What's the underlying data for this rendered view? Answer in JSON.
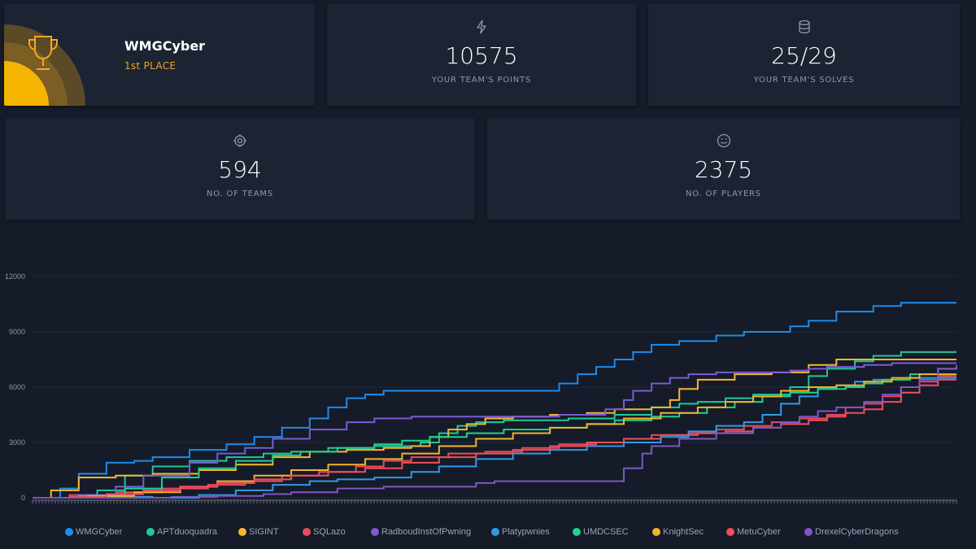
{
  "team_card": {
    "name": "WMGCyber",
    "place": "1st PLACE",
    "icon": "trophy-icon",
    "accent": "#f5a623"
  },
  "stats": {
    "points": {
      "value": "10575",
      "label": "YOUR TEAM'S POINTS",
      "icon": "lightning-icon"
    },
    "solves": {
      "value": "25/29",
      "label": "YOUR TEAM'S SOLVES",
      "icon": "database-icon"
    },
    "teams": {
      "value": "594",
      "label": "NO. OF TEAMS",
      "icon": "target-icon"
    },
    "players": {
      "value": "2375",
      "label": "NO. OF PLAYERS",
      "icon": "smiley-icon"
    }
  },
  "chart_data": {
    "type": "line",
    "title": "",
    "xlabel": "",
    "ylabel": "",
    "x_range": [
      0,
      100
    ],
    "ylim": [
      0,
      12000
    ],
    "y_ticks": [
      0,
      3000,
      6000,
      9000,
      12000
    ],
    "legend_position": "bottom",
    "series": [
      {
        "name": "WMGCyber",
        "color": "#1f8ceb",
        "points": [
          [
            0,
            0
          ],
          [
            3,
            500
          ],
          [
            5,
            1300
          ],
          [
            8,
            1900
          ],
          [
            11,
            2000
          ],
          [
            13,
            2200
          ],
          [
            17,
            2600
          ],
          [
            21,
            2900
          ],
          [
            24,
            3300
          ],
          [
            27,
            3800
          ],
          [
            30,
            4300
          ],
          [
            32,
            4900
          ],
          [
            34,
            5400
          ],
          [
            36,
            5600
          ],
          [
            38,
            5800
          ],
          [
            50,
            5800
          ],
          [
            54,
            5800
          ],
          [
            57,
            6200
          ],
          [
            59,
            6700
          ],
          [
            61,
            7100
          ],
          [
            63,
            7500
          ],
          [
            65,
            7900
          ],
          [
            67,
            8300
          ],
          [
            70,
            8500
          ],
          [
            74,
            8800
          ],
          [
            77,
            9000
          ],
          [
            82,
            9300
          ],
          [
            84,
            9600
          ],
          [
            87,
            10100
          ],
          [
            91,
            10400
          ],
          [
            94,
            10575
          ],
          [
            100,
            10575
          ]
        ]
      },
      {
        "name": "APTduoquadra",
        "color": "#1fc89a",
        "points": [
          [
            0,
            0
          ],
          [
            7,
            400
          ],
          [
            10,
            1200
          ],
          [
            13,
            1700
          ],
          [
            17,
            2000
          ],
          [
            21,
            2200
          ],
          [
            25,
            2400
          ],
          [
            28,
            2500
          ],
          [
            32,
            2700
          ],
          [
            37,
            2800
          ],
          [
            42,
            3000
          ],
          [
            44,
            3500
          ],
          [
            46,
            3900
          ],
          [
            48,
            4100
          ],
          [
            51,
            4200
          ],
          [
            58,
            4300
          ],
          [
            63,
            4500
          ],
          [
            67,
            4900
          ],
          [
            70,
            5100
          ],
          [
            72,
            5200
          ],
          [
            75,
            5400
          ],
          [
            78,
            5600
          ],
          [
            82,
            6000
          ],
          [
            84,
            6600
          ],
          [
            86,
            7000
          ],
          [
            89,
            7400
          ],
          [
            91,
            7700
          ],
          [
            94,
            7900
          ],
          [
            100,
            7900
          ]
        ]
      },
      {
        "name": "SIGINT",
        "color": "#f5b731",
        "points": [
          [
            0,
            0
          ],
          [
            2,
            400
          ],
          [
            5,
            1100
          ],
          [
            9,
            1200
          ],
          [
            13,
            1300
          ],
          [
            18,
            1500
          ],
          [
            22,
            1800
          ],
          [
            26,
            2200
          ],
          [
            30,
            2500
          ],
          [
            34,
            2600
          ],
          [
            38,
            2700
          ],
          [
            41,
            2800
          ],
          [
            43,
            3300
          ],
          [
            45,
            3700
          ],
          [
            47,
            4000
          ],
          [
            49,
            4300
          ],
          [
            52,
            4400
          ],
          [
            56,
            4500
          ],
          [
            60,
            4600
          ],
          [
            63,
            4800
          ],
          [
            67,
            4900
          ],
          [
            69,
            5300
          ],
          [
            70,
            5900
          ],
          [
            72,
            6400
          ],
          [
            76,
            6700
          ],
          [
            80,
            6800
          ],
          [
            84,
            7200
          ],
          [
            87,
            7500
          ],
          [
            91,
            7500
          ],
          [
            100,
            7500
          ]
        ]
      },
      {
        "name": "SQLazo",
        "color": "#e84a5f",
        "points": [
          [
            0,
            0
          ],
          [
            4,
            150
          ],
          [
            9,
            300
          ],
          [
            14,
            500
          ],
          [
            19,
            700
          ],
          [
            23,
            900
          ],
          [
            27,
            1200
          ],
          [
            31,
            1400
          ],
          [
            35,
            1700
          ],
          [
            38,
            2000
          ],
          [
            41,
            2200
          ],
          [
            45,
            2400
          ],
          [
            49,
            2500
          ],
          [
            53,
            2700
          ],
          [
            57,
            2900
          ],
          [
            61,
            3000
          ],
          [
            64,
            3200
          ],
          [
            67,
            3400
          ],
          [
            71,
            3500
          ],
          [
            74,
            3700
          ],
          [
            77,
            3900
          ],
          [
            80,
            4100
          ],
          [
            83,
            4300
          ],
          [
            86,
            4500
          ],
          [
            88,
            4900
          ],
          [
            90,
            5100
          ],
          [
            92,
            5500
          ],
          [
            94,
            6000
          ],
          [
            96,
            6300
          ],
          [
            98,
            6600
          ],
          [
            100,
            6600
          ]
        ]
      },
      {
        "name": "RadboudInstOfPwning",
        "color": "#7b5bd6",
        "points": [
          [
            0,
            0
          ],
          [
            5,
            150
          ],
          [
            9,
            600
          ],
          [
            12,
            1200
          ],
          [
            17,
            1900
          ],
          [
            20,
            2400
          ],
          [
            23,
            2700
          ],
          [
            26,
            3200
          ],
          [
            30,
            3700
          ],
          [
            34,
            4100
          ],
          [
            37,
            4300
          ],
          [
            41,
            4400
          ],
          [
            53,
            4400
          ],
          [
            57,
            4500
          ],
          [
            60,
            4500
          ],
          [
            62,
            4800
          ],
          [
            64,
            5300
          ],
          [
            65,
            5800
          ],
          [
            67,
            6200
          ],
          [
            69,
            6500
          ],
          [
            71,
            6700
          ],
          [
            74,
            6800
          ],
          [
            78,
            6800
          ],
          [
            82,
            6900
          ],
          [
            84,
            7000
          ],
          [
            86,
            7100
          ],
          [
            90,
            7200
          ],
          [
            93,
            7300
          ],
          [
            100,
            7300
          ]
        ]
      },
      {
        "name": "Platypwnies",
        "color": "#2f9be8",
        "points": [
          [
            0,
            0
          ],
          [
            8,
            50
          ],
          [
            13,
            0
          ],
          [
            18,
            150
          ],
          [
            22,
            400
          ],
          [
            26,
            700
          ],
          [
            30,
            900
          ],
          [
            33,
            1000
          ],
          [
            37,
            1100
          ],
          [
            41,
            1400
          ],
          [
            44,
            1700
          ],
          [
            48,
            2100
          ],
          [
            52,
            2400
          ],
          [
            56,
            2600
          ],
          [
            60,
            2800
          ],
          [
            64,
            3000
          ],
          [
            68,
            3300
          ],
          [
            71,
            3600
          ],
          [
            74,
            3900
          ],
          [
            77,
            4100
          ],
          [
            79,
            4500
          ],
          [
            81,
            5100
          ],
          [
            83,
            5500
          ],
          [
            85,
            5900
          ],
          [
            87,
            6100
          ],
          [
            89,
            6300
          ],
          [
            91,
            6400
          ],
          [
            94,
            6500
          ],
          [
            100,
            6500
          ]
        ]
      },
      {
        "name": "UMDCSEC",
        "color": "#23d18b",
        "points": [
          [
            0,
            0
          ],
          [
            5,
            100
          ],
          [
            10,
            500
          ],
          [
            14,
            1100
          ],
          [
            18,
            1600
          ],
          [
            22,
            2000
          ],
          [
            26,
            2300
          ],
          [
            29,
            2500
          ],
          [
            33,
            2700
          ],
          [
            37,
            2900
          ],
          [
            40,
            3100
          ],
          [
            43,
            3300
          ],
          [
            47,
            3500
          ],
          [
            51,
            3700
          ],
          [
            56,
            3800
          ],
          [
            60,
            4000
          ],
          [
            63,
            4200
          ],
          [
            67,
            4400
          ],
          [
            70,
            4600
          ],
          [
            73,
            4900
          ],
          [
            76,
            5200
          ],
          [
            79,
            5500
          ],
          [
            82,
            5700
          ],
          [
            85,
            5900
          ],
          [
            88,
            6000
          ],
          [
            90,
            6200
          ],
          [
            92,
            6400
          ],
          [
            95,
            6700
          ],
          [
            98,
            7000
          ],
          [
            100,
            7000
          ]
        ]
      },
      {
        "name": "KnightSec",
        "color": "#f0b429",
        "points": [
          [
            0,
            0
          ],
          [
            6,
            100
          ],
          [
            11,
            300
          ],
          [
            16,
            600
          ],
          [
            20,
            900
          ],
          [
            24,
            1200
          ],
          [
            28,
            1500
          ],
          [
            32,
            1800
          ],
          [
            36,
            2100
          ],
          [
            40,
            2400
          ],
          [
            44,
            2800
          ],
          [
            48,
            3200
          ],
          [
            52,
            3500
          ],
          [
            56,
            3800
          ],
          [
            60,
            4000
          ],
          [
            64,
            4300
          ],
          [
            68,
            4600
          ],
          [
            72,
            4900
          ],
          [
            75,
            5200
          ],
          [
            78,
            5500
          ],
          [
            81,
            5800
          ],
          [
            84,
            6000
          ],
          [
            87,
            6100
          ],
          [
            90,
            6300
          ],
          [
            93,
            6500
          ],
          [
            96,
            6700
          ],
          [
            100,
            6700
          ]
        ]
      },
      {
        "name": "MetuCyber",
        "color": "#f04e5e",
        "points": [
          [
            0,
            0
          ],
          [
            4,
            50
          ],
          [
            8,
            200
          ],
          [
            12,
            400
          ],
          [
            16,
            600
          ],
          [
            20,
            800
          ],
          [
            24,
            1000
          ],
          [
            28,
            1200
          ],
          [
            32,
            1400
          ],
          [
            36,
            1600
          ],
          [
            40,
            1900
          ],
          [
            44,
            2200
          ],
          [
            48,
            2400
          ],
          [
            52,
            2600
          ],
          [
            56,
            2800
          ],
          [
            60,
            3000
          ],
          [
            64,
            3200
          ],
          [
            68,
            3400
          ],
          [
            72,
            3500
          ],
          [
            75,
            3600
          ],
          [
            78,
            3800
          ],
          [
            81,
            4000
          ],
          [
            84,
            4200
          ],
          [
            86,
            4400
          ],
          [
            88,
            4600
          ],
          [
            90,
            4800
          ],
          [
            92,
            5200
          ],
          [
            94,
            5700
          ],
          [
            96,
            6100
          ],
          [
            98,
            6400
          ],
          [
            100,
            6400
          ]
        ]
      },
      {
        "name": "DrexelCyberDragons",
        "color": "#7e57c2",
        "points": [
          [
            0,
            0
          ],
          [
            10,
            0
          ],
          [
            15,
            50
          ],
          [
            20,
            100
          ],
          [
            25,
            200
          ],
          [
            28,
            300
          ],
          [
            33,
            500
          ],
          [
            38,
            600
          ],
          [
            46,
            600
          ],
          [
            48,
            800
          ],
          [
            50,
            900
          ],
          [
            55,
            900
          ],
          [
            60,
            900
          ],
          [
            63,
            900
          ],
          [
            64,
            1600
          ],
          [
            66,
            2400
          ],
          [
            67,
            2800
          ],
          [
            70,
            3200
          ],
          [
            74,
            3500
          ],
          [
            78,
            3800
          ],
          [
            81,
            4100
          ],
          [
            83,
            4400
          ],
          [
            85,
            4700
          ],
          [
            87,
            4900
          ],
          [
            90,
            5200
          ],
          [
            92,
            5600
          ],
          [
            94,
            6000
          ],
          [
            96,
            6400
          ],
          [
            98,
            7000
          ],
          [
            100,
            7200
          ]
        ]
      }
    ]
  }
}
